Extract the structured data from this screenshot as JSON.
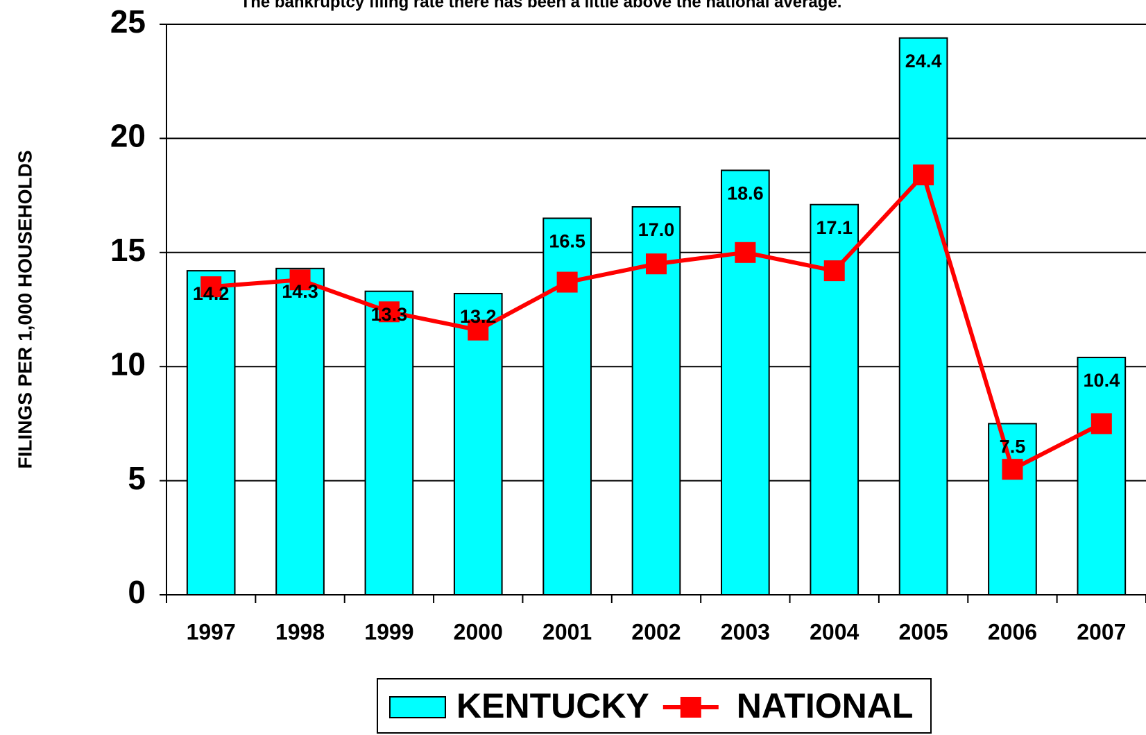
{
  "chart_data": {
    "type": "bar",
    "title": "The bankruptcy filing rate there has been a little above the national average.",
    "y_label": "FILINGS PER 1,000 HOUSEHOLDS",
    "categories": [
      "1997",
      "1998",
      "1999",
      "2000",
      "2001",
      "2002",
      "2003",
      "2004",
      "2005",
      "2006",
      "2007"
    ],
    "series": [
      {
        "name": "KENTUCKY",
        "type": "bar",
        "color": "#00ffff",
        "values": [
          14.2,
          14.3,
          13.3,
          13.2,
          16.5,
          17.0,
          18.6,
          17.1,
          24.4,
          7.5,
          10.4
        ],
        "value_labels": [
          "14.2",
          "14.3",
          "13.3",
          "13.2",
          "16.5",
          "17.0",
          "18.6",
          "17.1",
          "24.4",
          "7.5",
          "10.4"
        ]
      },
      {
        "name": "NATIONAL",
        "type": "line",
        "color": "#ff0000",
        "values": [
          13.5,
          13.8,
          12.4,
          11.6,
          13.7,
          14.5,
          15.0,
          14.2,
          18.4,
          5.5,
          7.5
        ]
      }
    ],
    "ylim": [
      0,
      25
    ],
    "yticks": [
      0,
      5,
      10,
      15,
      20,
      25
    ],
    "grid": true,
    "legend": "bottom"
  }
}
